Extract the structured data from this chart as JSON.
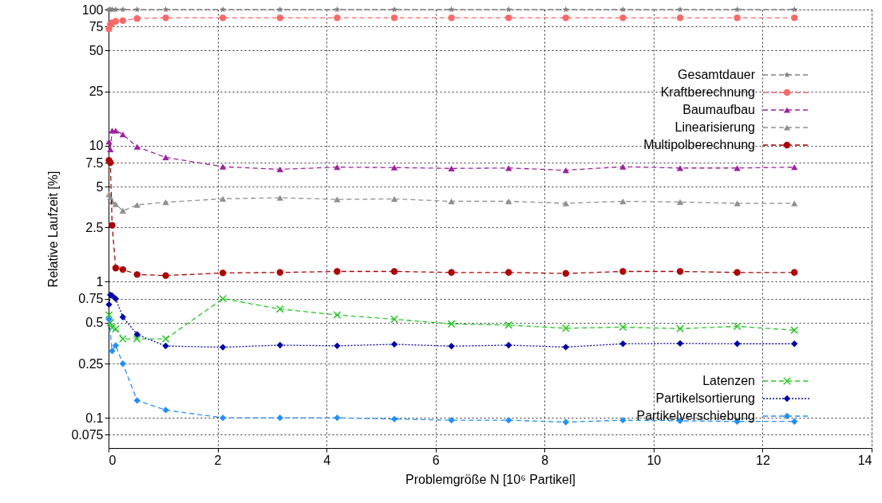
{
  "chart_data": {
    "type": "line",
    "xlabel": "Problemgröße N [10⁶ Partikel]",
    "ylabel": "Relative Laufzeit [%]",
    "x": [
      0.008,
      0.033,
      0.066,
      0.131,
      0.262,
      0.524,
      1.049,
      2.097,
      3.146,
      4.194,
      5.243,
      6.291,
      7.34,
      8.389,
      9.437,
      10.486,
      11.534,
      12.583
    ],
    "xlim": [
      0,
      14
    ],
    "xticks": [
      0,
      2,
      4,
      6,
      8,
      10,
      12,
      14
    ],
    "log": true,
    "ylim": [
      0.06,
      100
    ],
    "yticks": [
      0.075,
      0.1,
      0.25,
      0.5,
      0.75,
      1,
      2.5,
      5,
      7.5,
      10,
      25,
      50,
      75,
      100
    ],
    "grid": true,
    "legend": "right",
    "series": [
      {
        "name": "Gesamtdauer",
        "color": "#808080",
        "marker": "star",
        "line_style": "dashed",
        "values": [
          100,
          100,
          100,
          100,
          100,
          100,
          100,
          100,
          100,
          100,
          100,
          100,
          100,
          100,
          100,
          100,
          100,
          100
        ]
      },
      {
        "name": "Kraftberechnung",
        "color": "#ff6666",
        "marker": "circle",
        "line_style": "dashed",
        "values": [
          72,
          78,
          80,
          82,
          83,
          86,
          87,
          87,
          87,
          87,
          87,
          87,
          87,
          87,
          87,
          87,
          87,
          87
        ]
      },
      {
        "name": "Baumaufbau",
        "color": "#a020a0",
        "marker": "triangle",
        "line_style": "dashed",
        "values": [
          10.7,
          9.4,
          12.9,
          12.9,
          12.1,
          9.8,
          8.2,
          7.0,
          6.7,
          6.95,
          6.9,
          6.8,
          6.85,
          6.6,
          7.0,
          6.85,
          6.85,
          6.95
        ]
      },
      {
        "name": "Linearisierung",
        "color": "#909090",
        "marker": "triangle",
        "line_style": "dashed",
        "values": [
          4.4,
          4.16,
          3.9,
          3.72,
          3.32,
          3.67,
          3.84,
          4.07,
          4.14,
          4.03,
          4.06,
          3.9,
          3.9,
          3.77,
          3.9,
          3.85,
          3.77,
          3.77
        ]
      },
      {
        "name": "Multipolberechnung",
        "color": "#b00000",
        "marker": "circle",
        "line_style": "dashed",
        "values": [
          7.8,
          7.5,
          2.6,
          1.26,
          1.23,
          1.13,
          1.11,
          1.16,
          1.17,
          1.19,
          1.19,
          1.17,
          1.17,
          1.15,
          1.19,
          1.19,
          1.17,
          1.17
        ]
      },
      {
        "name": "Latenzen",
        "color": "#22cc22",
        "marker": "cross",
        "line_style": "dashed",
        "values": [
          0.57,
          0.5,
          0.46,
          0.45,
          0.38,
          0.38,
          0.38,
          0.75,
          0.63,
          0.57,
          0.53,
          0.49,
          0.48,
          0.455,
          0.464,
          0.452,
          0.47,
          0.44
        ]
      },
      {
        "name": "Partikelsortierung",
        "color": "#0000b0",
        "marker": "diamond",
        "line_style": "dotted",
        "values": [
          0.68,
          0.8,
          0.79,
          0.75,
          0.55,
          0.41,
          0.337,
          0.33,
          0.342,
          0.338,
          0.347,
          0.336,
          0.342,
          0.331,
          0.35,
          0.352,
          0.35,
          0.35
        ]
      },
      {
        "name": "Partikelverschiebung",
        "color": "#2090ff",
        "marker": "diamond",
        "line_style": "dashed",
        "values": [
          0.53,
          null,
          0.31,
          0.34,
          0.25,
          0.134,
          0.114,
          0.1,
          0.1,
          0.1,
          0.098,
          0.096,
          0.096,
          0.093,
          0.096,
          0.095,
          0.094,
          0.094
        ]
      }
    ]
  }
}
